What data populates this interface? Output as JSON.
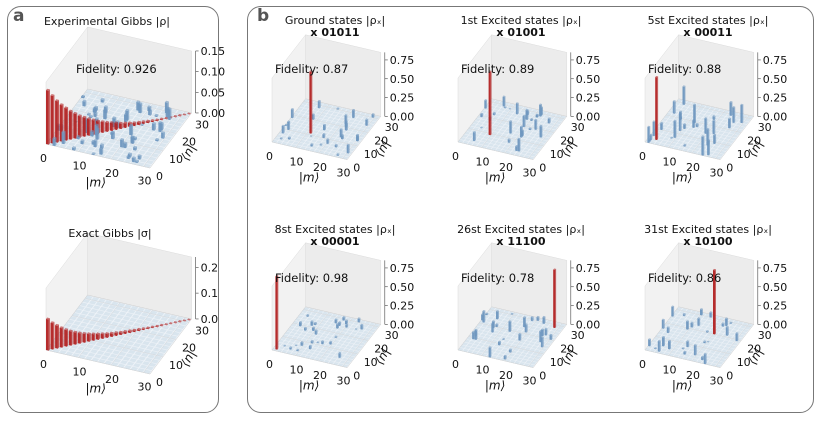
{
  "panel_labels": {
    "a": "a",
    "b": "b"
  },
  "colors": {
    "bar_red": "#b22222",
    "bar_blue": "#6f97bf",
    "floor": "#c9d8e6",
    "pane": "#ececec",
    "grid": "#d6d6d6"
  },
  "chart_data": [
    {
      "type": "bar3d",
      "panel": "a",
      "title": "Experimental Gibbs |ρ|",
      "annotation": "Fidelity: 0.926",
      "xlabel": "|m⟩",
      "ylabel": "⟨n|",
      "xticks": [
        "0",
        "10",
        "20",
        "30"
      ],
      "yticks": [
        "0",
        "10",
        "20",
        "30"
      ],
      "zticks": [
        "0.00",
        "0.05",
        "0.10",
        "0.15"
      ],
      "zlim": [
        0,
        0.15
      ],
      "diagonal_values": [
        0.13,
        0.115,
        0.1,
        0.088,
        0.078,
        0.068,
        0.06,
        0.052,
        0.046,
        0.04,
        0.035,
        0.03,
        0.026,
        0.022,
        0.019,
        0.016,
        0.013,
        0.011,
        0.009,
        0.007,
        0.006,
        0.005,
        0.004,
        0.003,
        0.002,
        0.002,
        0.001,
        0.001,
        0.001,
        0.001,
        0.0,
        0.0
      ],
      "offdiagonal_max": 0.03
    },
    {
      "type": "bar3d",
      "panel": "a",
      "title": "Exact Gibbs |σ|",
      "annotation": "",
      "xlabel": "|m⟩",
      "ylabel": "⟨n|",
      "xticks": [
        "0",
        "10",
        "20",
        "30"
      ],
      "yticks": [
        "0",
        "10",
        "20",
        "30"
      ],
      "zticks": [
        "0.0",
        "0.1",
        "0.2"
      ],
      "zlim": [
        0,
        0.24
      ],
      "diagonal_values": [
        0.12,
        0.102,
        0.088,
        0.075,
        0.064,
        0.055,
        0.047,
        0.04,
        0.034,
        0.029,
        0.025,
        0.021,
        0.018,
        0.015,
        0.013,
        0.011,
        0.009,
        0.008,
        0.007,
        0.006,
        0.005,
        0.004,
        0.003,
        0.003,
        0.002,
        0.002,
        0.001,
        0.001,
        0.001,
        0.001,
        0.0,
        0.0
      ],
      "offdiagonal_max": 0.0
    },
    {
      "type": "bar3d",
      "panel": "b",
      "title": "Ground states |ρₓ|",
      "subtitle": "x 01011",
      "annotation": "Fidelity: 0.87",
      "xlabel": "|m⟩",
      "ylabel": "⟨n|",
      "xticks": [
        "0",
        "10",
        "20",
        "30"
      ],
      "yticks": [
        "0",
        "10",
        "20",
        "30"
      ],
      "zticks": [
        "0.00",
        "0.25",
        "0.50",
        "0.75"
      ],
      "zlim": [
        0,
        0.85
      ],
      "peak_index": 11,
      "peak_value": 0.82,
      "offdiagonal_max": 0.12
    },
    {
      "type": "bar3d",
      "panel": "b",
      "title": "1st Excited states |ρₓ|",
      "subtitle": "x 01001",
      "annotation": "Fidelity: 0.89",
      "xlabel": "|m⟩",
      "ylabel": "⟨n|",
      "xticks": [
        "0",
        "10",
        "20",
        "30"
      ],
      "yticks": [
        "0",
        "10",
        "20",
        "30"
      ],
      "zticks": [
        "0.00",
        "0.25",
        "0.50",
        "0.75"
      ],
      "zlim": [
        0,
        0.85
      ],
      "peak_index": 9,
      "peak_value": 0.84,
      "offdiagonal_max": 0.18
    },
    {
      "type": "bar3d",
      "panel": "b",
      "title": "5st Excited states |ρₓ|",
      "subtitle": "x 00011",
      "annotation": "Fidelity: 0.88",
      "xlabel": "|m⟩",
      "ylabel": "⟨n|",
      "xticks": [
        "0",
        "10",
        "20",
        "30"
      ],
      "yticks": [
        "0",
        "10",
        "20",
        "30"
      ],
      "zticks": [
        "0.00",
        "0.25",
        "0.50",
        "0.75"
      ],
      "zlim": [
        0,
        0.85
      ],
      "peak_index": 3,
      "peak_value": 0.83,
      "offdiagonal_max": 0.25
    },
    {
      "type": "bar3d",
      "panel": "b",
      "title": "8st Excited states |ρₓ|",
      "subtitle": "x 00001",
      "annotation": "Fidelity: 0.98",
      "xlabel": "|m⟩",
      "ylabel": "⟨n|",
      "xticks": [
        "0",
        "10",
        "20",
        "30"
      ],
      "yticks": [
        "0",
        "10",
        "20",
        "30"
      ],
      "zticks": [
        "0.00",
        "0.25",
        "0.50",
        "0.75"
      ],
      "zlim": [
        0,
        0.85
      ],
      "peak_index": 1,
      "peak_value": 0.97,
      "offdiagonal_max": 0.07
    },
    {
      "type": "bar3d",
      "panel": "b",
      "title": "26st Excited states |ρₓ|",
      "subtitle": "x 11100",
      "annotation": "Fidelity: 0.78",
      "xlabel": "|m⟩",
      "ylabel": "⟨n|",
      "xticks": [
        "0",
        "10",
        "20",
        "30"
      ],
      "yticks": [
        "0",
        "10",
        "20",
        "30"
      ],
      "zticks": [
        "0.00",
        "0.25",
        "0.50",
        "0.75"
      ],
      "zlim": [
        0,
        0.85
      ],
      "peak_index": 28,
      "peak_value": 0.77,
      "offdiagonal_max": 0.15
    },
    {
      "type": "bar3d",
      "panel": "b",
      "title": "31st Excited states |ρₓ|",
      "subtitle": "x 10100",
      "annotation": "Fidelity: 0.86",
      "xlabel": "|m⟩",
      "ylabel": "⟨n|",
      "xticks": [
        "0",
        "10",
        "20",
        "30"
      ],
      "yticks": [
        "0",
        "10",
        "20",
        "30"
      ],
      "zticks": [
        "0.00",
        "0.25",
        "0.50",
        "0.75"
      ],
      "zlim": [
        0,
        0.85
      ],
      "peak_index": 20,
      "peak_value": 0.85,
      "offdiagonal_max": 0.14
    }
  ]
}
